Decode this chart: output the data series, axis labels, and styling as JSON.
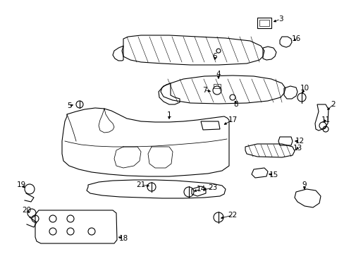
{
  "bg_color": "#ffffff",
  "fig_width": 4.89,
  "fig_height": 3.6,
  "dpi": 100,
  "lc": "#000000",
  "lw": 0.8
}
